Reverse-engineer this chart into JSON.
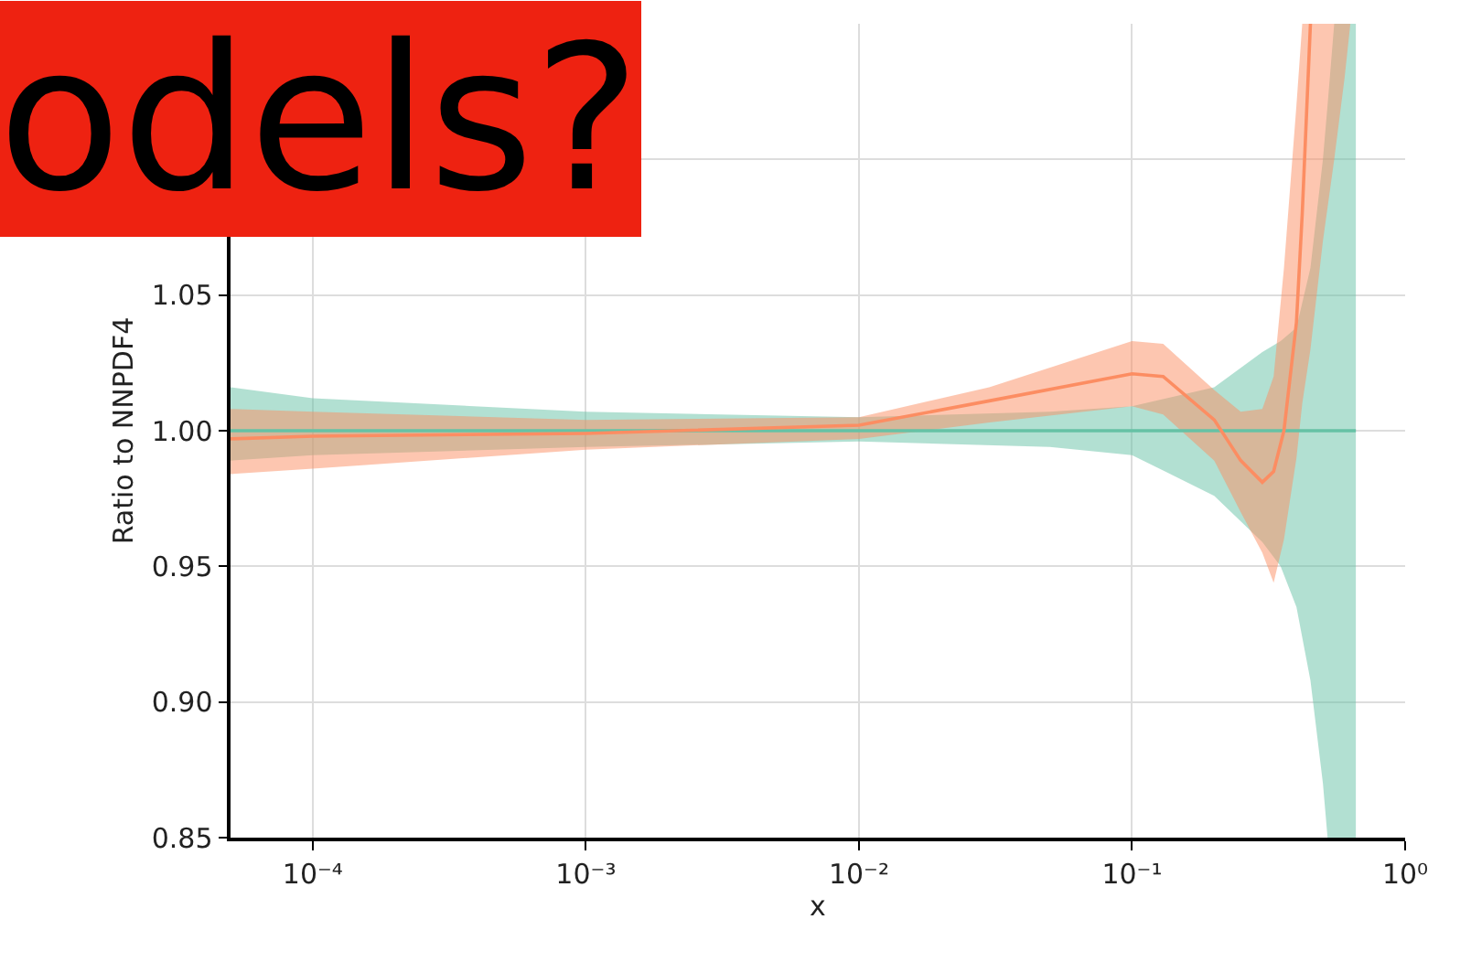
{
  "chart_data": {
    "type": "line",
    "xlabel": "x",
    "ylabel": "Ratio to NNPDF4",
    "log": "x",
    "grid": true,
    "marker": "none",
    "xlim": [
      5e-05,
      1
    ],
    "ylim": [
      0.85,
      1.15
    ],
    "xticks": [
      {
        "value": 0.0001,
        "label": "10⁻⁴"
      },
      {
        "value": 0.001,
        "label": "10⁻³"
      },
      {
        "value": 0.01,
        "label": "10⁻²"
      },
      {
        "value": 0.1,
        "label": "10⁻¹"
      },
      {
        "value": 1,
        "label": "10⁰"
      }
    ],
    "yticks": [
      {
        "value": 0.85,
        "label": "0.85"
      },
      {
        "value": 0.9,
        "label": "0.90"
      },
      {
        "value": 0.95,
        "label": "0.95"
      },
      {
        "value": 1.0,
        "label": "1.00"
      },
      {
        "value": 1.05,
        "label": "1.05"
      },
      {
        "value": 1.1,
        "label": null
      },
      {
        "value": 1.15,
        "label": null
      }
    ],
    "annotations": [
      "odels?"
    ],
    "series": [
      {
        "color": "#66c2a5",
        "line_style": "solid",
        "x": [
          5e-05,
          0.0001,
          0.001,
          0.01,
          0.05,
          0.1,
          0.2,
          0.3,
          0.35,
          0.4,
          0.45,
          0.5,
          0.52,
          0.55,
          0.66
        ],
        "values": [
          1.0,
          1.0,
          1.0,
          1.0,
          1.0,
          1.0,
          1.0,
          1.0,
          1.0,
          1.0,
          1.0,
          1.0,
          1.0,
          1.0,
          1.0
        ],
        "upper": [
          1.016,
          1.012,
          1.007,
          1.005,
          1.007,
          1.009,
          1.016,
          1.029,
          1.033,
          1.038,
          1.06,
          1.1,
          1.12,
          1.15,
          1.15
        ],
        "lower": [
          0.989,
          0.991,
          0.994,
          0.996,
          0.994,
          0.991,
          0.976,
          0.959,
          0.95,
          0.935,
          0.908,
          0.87,
          0.85,
          0.85,
          0.85
        ]
      },
      {
        "color": "#fc8d62",
        "line_style": "solid",
        "x": [
          5e-05,
          0.0001,
          0.001,
          0.01,
          0.03,
          0.1,
          0.13,
          0.2,
          0.25,
          0.3,
          0.33,
          0.36,
          0.4,
          0.42,
          0.45,
          0.5,
          0.55,
          0.6,
          0.63
        ],
        "values": [
          0.997,
          0.998,
          0.999,
          1.002,
          1.011,
          1.021,
          1.02,
          1.004,
          0.989,
          0.981,
          0.985,
          1.0,
          1.04,
          1.08,
          1.15,
          null,
          null,
          null,
          null
        ],
        "upper": [
          1.008,
          1.007,
          1.004,
          1.005,
          1.016,
          1.033,
          1.032,
          1.015,
          1.007,
          1.008,
          1.02,
          1.06,
          1.12,
          1.15,
          1.15,
          1.15,
          1.15,
          1.15,
          1.15
        ],
        "lower": [
          0.984,
          0.986,
          0.993,
          0.997,
          1.003,
          1.009,
          1.006,
          0.989,
          0.97,
          0.955,
          0.944,
          0.96,
          0.99,
          1.01,
          1.03,
          1.07,
          1.1,
          1.13,
          1.15
        ]
      }
    ]
  }
}
